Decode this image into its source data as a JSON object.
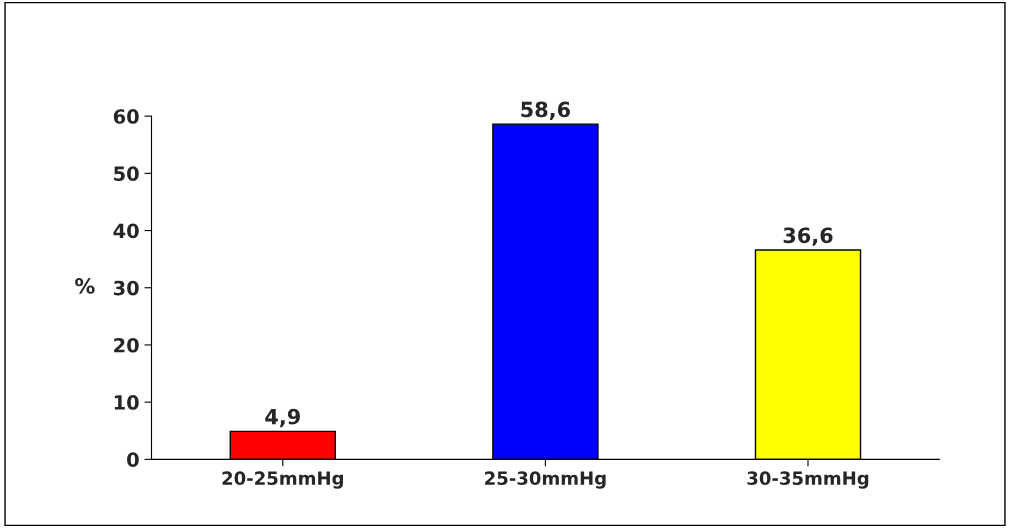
{
  "chart_data": {
    "type": "bar",
    "ylabel": "%",
    "categories": [
      "20-25mmHg",
      "25-30mmHg",
      "30-35mmHg"
    ],
    "values": [
      4.9,
      58.6,
      36.6
    ],
    "colors": [
      "#ff0000",
      "#0000ff",
      "#ffff00"
    ],
    "value_labels": [
      "4,9",
      "58,6",
      "36,6"
    ],
    "ylim": [
      0,
      60
    ],
    "yticks": [
      0,
      10,
      20,
      30,
      40,
      50,
      60
    ],
    "grid": false,
    "legend": false
  }
}
